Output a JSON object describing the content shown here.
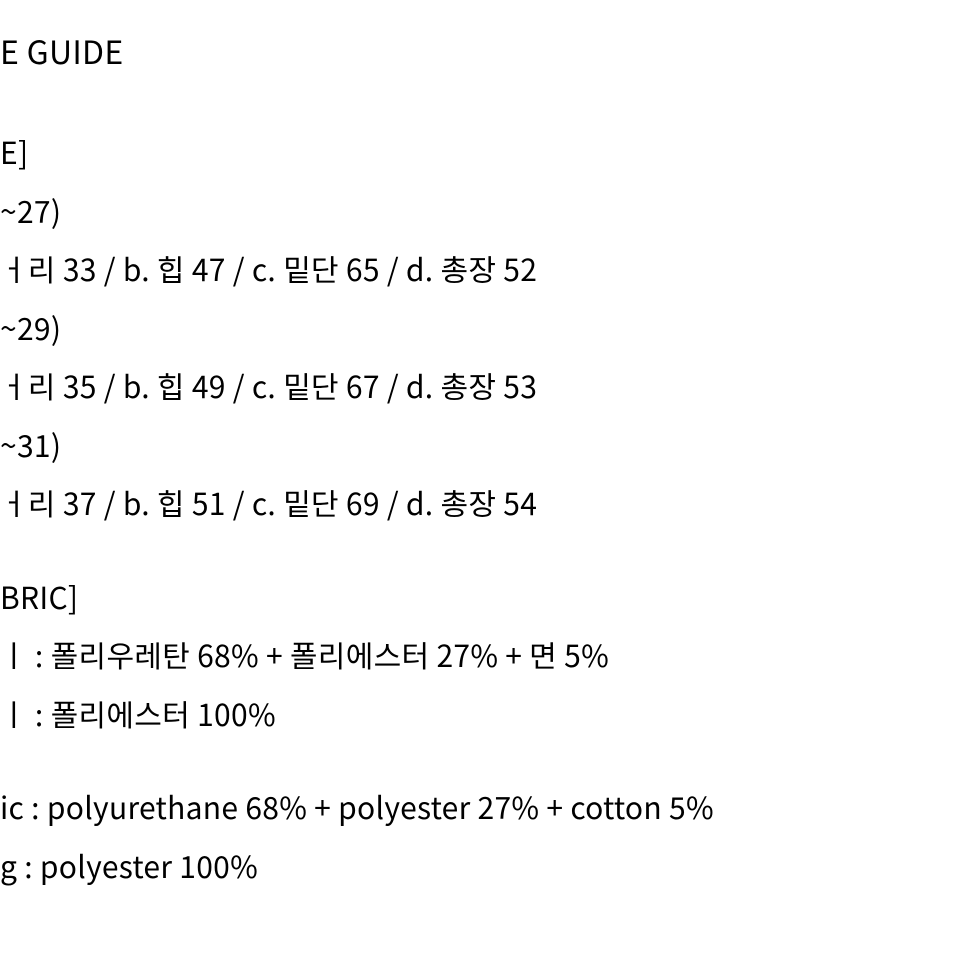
{
  "background_color": "#ffffff",
  "text_color": "#000000",
  "font_size_body": 30,
  "font_size_heading": 32,
  "line_height": 1.95,
  "heading": "E GUIDE",
  "size_section": {
    "label": "E]",
    "rows": [
      {
        "range": "~27)",
        "spec": "ㅓ리 33 / b. 힙 47 / c. 밑단 65 / d. 총장 52"
      },
      {
        "range": "~29)",
        "spec": "ㅓ리 35 / b. 힙 49 / c. 밑단 67 / d. 총장 53"
      },
      {
        "range": "~31)",
        "spec": "ㅓ리 37 / b. 힙 51 / c. 밑단 69 / d. 총장 54"
      }
    ]
  },
  "fabric_section": {
    "label": "BRIC]",
    "kr": [
      "ㅣ : 폴리우레탄 68% + 폴리에스터 27% + 면 5%",
      "ㅣ : 폴리에스터 100%"
    ],
    "en": [
      "ic : polyurethane 68% + polyester 27% + cotton 5%",
      "g : polyester 100%"
    ]
  }
}
